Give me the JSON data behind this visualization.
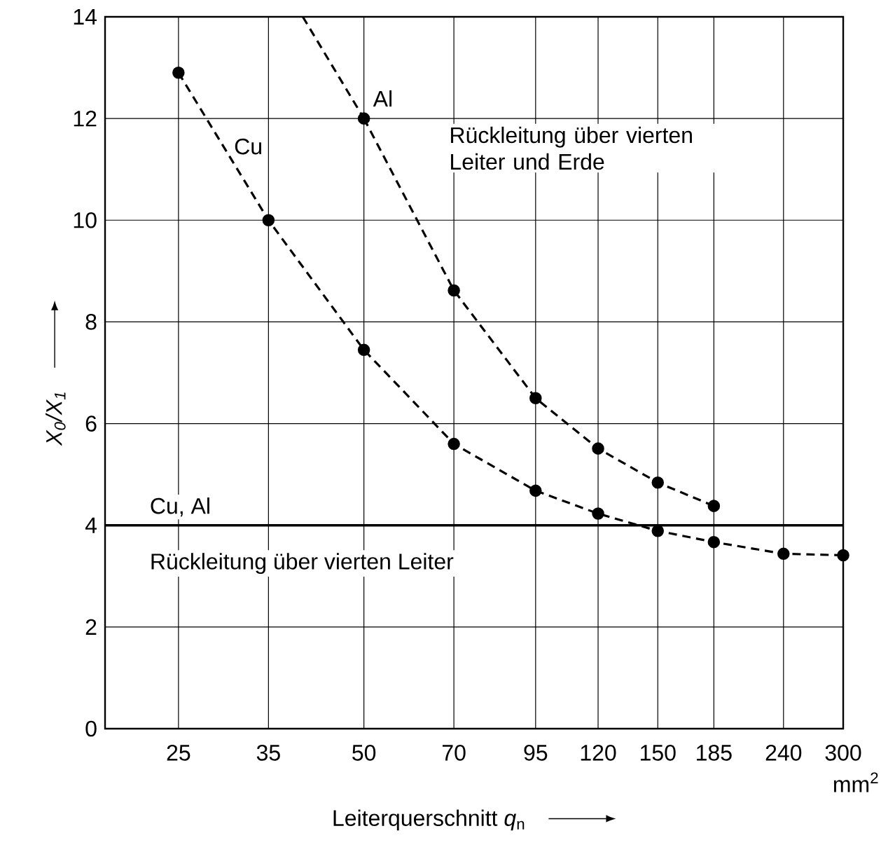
{
  "chart_data": {
    "type": "line",
    "xlabel": "Leiterquerschnitt *q*$_{n}$",
    "ylabel": "X$_{0}$/X$_{1}$",
    "log": "x",
    "xlim": [
      19,
      300
    ],
    "xticks": [
      25,
      35,
      50,
      70,
      95,
      120,
      150,
      185,
      240,
      300
    ],
    "ylim": [
      0,
      14
    ],
    "yticks": [
      0,
      2,
      4,
      6,
      8,
      10,
      12,
      14
    ],
    "grid": true,
    "marker": "circle",
    "line_style": "dashed",
    "series": [
      {
        "name": "Cu",
        "color": "#000000",
        "x": [
          25,
          35,
          50,
          70,
          95,
          120,
          150,
          185,
          240,
          300
        ],
        "values": [
          12.9,
          10.0,
          7.45,
          5.6,
          4.68,
          4.23,
          3.89,
          3.67,
          3.44,
          3.41
        ]
      },
      {
        "name": "Al",
        "color": "#000000",
        "x": [
          50,
          70,
          95,
          120,
          150,
          185
        ],
        "values": [
          12.0,
          8.62,
          6.5,
          5.51,
          4.84,
          4.38
        ]
      },
      {
        "color": "#000000",
        "x": [
          39.8,
          50
        ],
        "values": [
          14,
          12.0
        ],
        "marker": "none"
      }
    ],
    "ref_lines": [
      {
        "axis": "y",
        "value": 4,
        "label": "Cu, Al",
        "color": "#000000",
        "line_style": "solid"
      }
    ],
    "annotations": [
      "Rückleitung über vierten Leiter und Erde",
      "Rückleitung über vierten Leiter",
      "mm$^{2}$"
    ]
  }
}
